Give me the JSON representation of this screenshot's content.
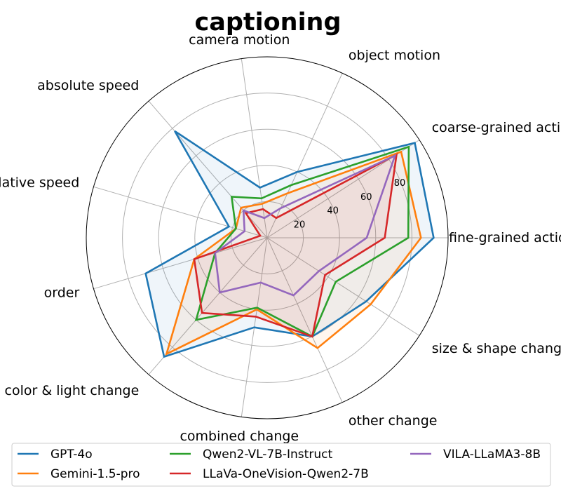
{
  "chart_data": {
    "type": "radar",
    "title": "captioning",
    "categories": [
      "fine-grained action",
      "coarse-grained action",
      "object motion",
      "camera motion",
      "absolute speed",
      "relative speed",
      "order",
      "color & light change",
      "combined change",
      "other change",
      "size & shape change"
    ],
    "radial_ticks": [
      20,
      40,
      60,
      80
    ],
    "rlim": [
      0,
      100
    ],
    "grid": true,
    "legend_position": "bottom",
    "series": [
      {
        "name": "GPT-4o",
        "color": "#1f77b4",
        "fill": true,
        "values": [
          92,
          97,
          40,
          28,
          78,
          22,
          70,
          87,
          50,
          60,
          65
        ]
      },
      {
        "name": "Gemini-1.5-pro",
        "color": "#ff7f0e",
        "fill": true,
        "values": [
          85,
          88,
          27,
          19,
          22,
          18,
          42,
          85,
          40,
          67,
          68
        ]
      },
      {
        "name": "Qwen2-VL-7B-Instruct",
        "color": "#2ca02c",
        "fill": false,
        "values": [
          78,
          93,
          32,
          22,
          30,
          18,
          30,
          60,
          39,
          60,
          45
        ]
      },
      {
        "name": "LLaVa-OneVision-Qwen2-7B",
        "color": "#d62728",
        "fill": true,
        "values": [
          65,
          85,
          12,
          16,
          18,
          4,
          42,
          55,
          44,
          60,
          38
        ]
      },
      {
        "name": "VILA-LLaMA3-8B",
        "color": "#9467bd",
        "fill": false,
        "values": [
          55,
          84,
          18,
          11,
          20,
          13,
          30,
          40,
          25,
          35,
          34
        ]
      }
    ]
  }
}
